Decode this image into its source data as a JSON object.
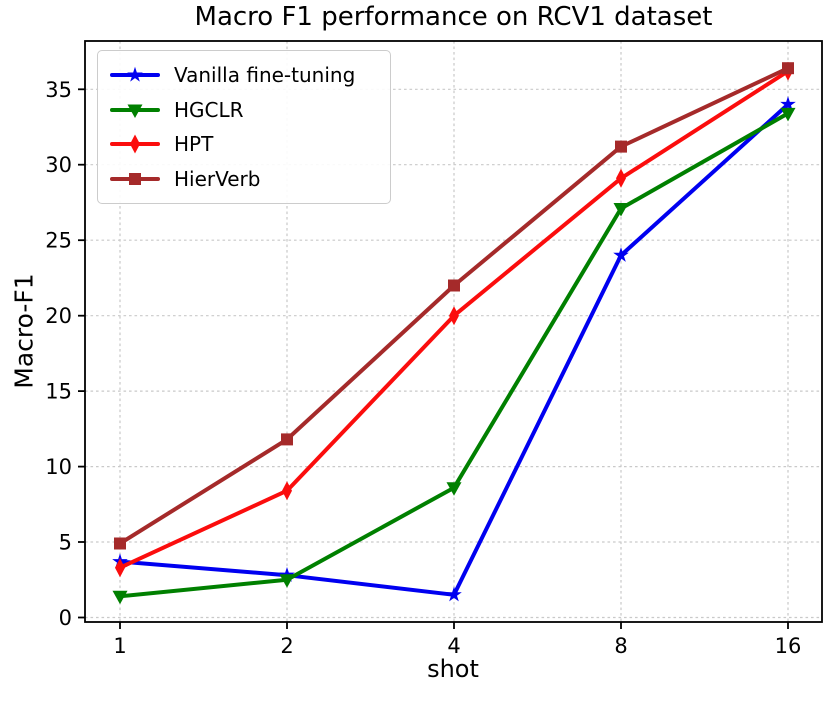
{
  "chart_data": {
    "type": "line",
    "title": "Macro F1 performance on RCV1 dataset",
    "xlabel": "shot",
    "ylabel": "Macro-F1",
    "categories": [
      1,
      2,
      4,
      8,
      16
    ],
    "x_scale": "log2-categorical-even-spacing",
    "yticks": [
      0,
      5,
      10,
      15,
      20,
      25,
      30,
      35
    ],
    "ylim": [
      -0.3,
      38.2
    ],
    "grid": true,
    "grid_style": "dashed-light-gray",
    "legend_position": "upper-left",
    "background_color": "#ffffff",
    "series": [
      {
        "name": "Vanilla fine-tuning",
        "color": "#0000f0",
        "marker": "star",
        "values": [
          3.7,
          2.8,
          1.5,
          24.0,
          34.0
        ]
      },
      {
        "name": "HGCLR",
        "color": "#008000",
        "marker": "triangle-down",
        "values": [
          1.4,
          2.5,
          8.6,
          27.1,
          33.4
        ]
      },
      {
        "name": "HPT",
        "color": "#fb0d0d",
        "marker": "diamond",
        "values": [
          3.3,
          8.4,
          20.0,
          29.1,
          36.2
        ]
      },
      {
        "name": "HierVerb",
        "color": "#a52a2a",
        "marker": "square",
        "values": [
          4.9,
          11.8,
          22.0,
          31.2,
          36.4
        ]
      }
    ]
  }
}
